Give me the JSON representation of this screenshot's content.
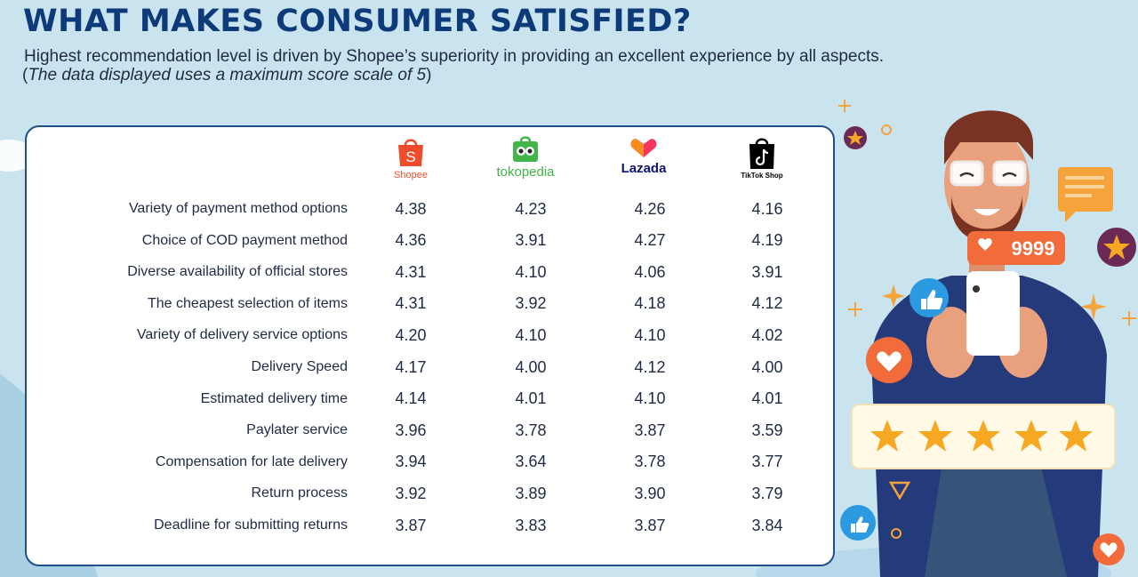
{
  "header": {
    "title": "WHAT MAKES CONSUMER SATISFIED?",
    "subtitle": "Highest recommendation level is driven by Shopee’s superiority in providing an excellent experience by all aspects.",
    "note_open": "(",
    "note_italic": "The data displayed uses a maximum score scale of 5",
    "note_close": ")"
  },
  "brands": [
    {
      "name": "Shopee",
      "icon": "shopping-bag-icon",
      "color": "#ee4d2d"
    },
    {
      "name": "tokopedia",
      "icon": "owl-bag-icon",
      "color": "#42b549"
    },
    {
      "name": "Lazada",
      "icon": "heart-box-icon",
      "color": "#0f146d"
    },
    {
      "name": "TikTok Shop",
      "icon": "tiktok-bag-icon",
      "color": "#000000"
    }
  ],
  "table": {
    "rows": [
      {
        "label": "Variety of payment method options",
        "values": [
          "4.38",
          "4.23",
          "4.26",
          "4.16"
        ]
      },
      {
        "label": "Choice of COD payment method",
        "values": [
          "4.36",
          "3.91",
          "4.27",
          "4.19"
        ]
      },
      {
        "label": "Diverse availability of official stores",
        "values": [
          "4.31",
          "4.10",
          "4.06",
          "3.91"
        ]
      },
      {
        "label": "The cheapest selection of items",
        "values": [
          "4.31",
          "3.92",
          "4.18",
          "4.12"
        ]
      },
      {
        "label": "Variety of delivery service options",
        "values": [
          "4.20",
          "4.10",
          "4.10",
          "4.02"
        ]
      },
      {
        "label": "Delivery Speed",
        "values": [
          "4.17",
          "4.00",
          "4.12",
          "4.00"
        ]
      },
      {
        "label": "Estimated delivery time",
        "values": [
          "4.14",
          "4.01",
          "4.10",
          "4.01"
        ]
      },
      {
        "label": "Paylater service",
        "values": [
          "3.96",
          "3.78",
          "3.87",
          "3.59"
        ]
      },
      {
        "label": "Compensation for late delivery",
        "values": [
          "3.94",
          "3.64",
          "3.78",
          "3.77"
        ]
      },
      {
        "label": "Return process",
        "values": [
          "3.92",
          "3.89",
          "3.90",
          "3.79"
        ]
      },
      {
        "label": "Deadline for submitting returns",
        "values": [
          "3.87",
          "3.83",
          "3.87",
          "3.84"
        ]
      }
    ]
  },
  "illustration": {
    "like_count": "9999",
    "stars": 5
  },
  "colors": {
    "title": "#0d3a78",
    "card_border": "#1d4f8a",
    "background": "#c9e3ef",
    "accent_orange": "#f26b3a",
    "star": "#f7a823"
  }
}
